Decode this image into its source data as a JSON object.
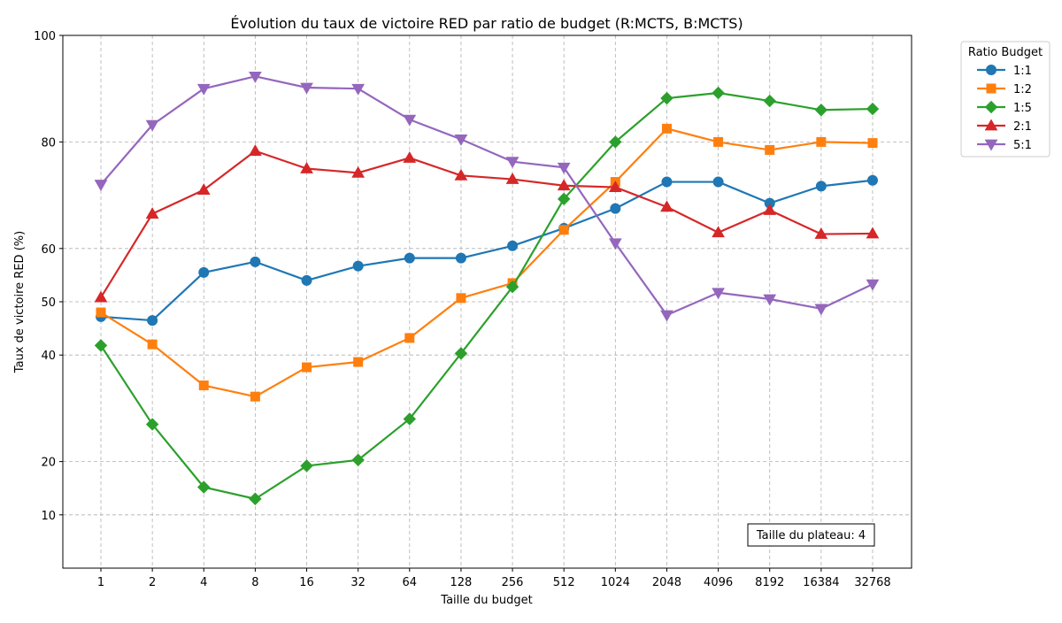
{
  "chart_data": {
    "type": "line",
    "title": "Évolution du taux de victoire RED par ratio de budget (R:MCTS, B:MCTS)",
    "xlabel": "Taille du budget",
    "ylabel": "Taux de victoire RED (%)",
    "categories": [
      "1",
      "2",
      "4",
      "8",
      "16",
      "32",
      "64",
      "128",
      "256",
      "512",
      "1024",
      "2048",
      "4096",
      "8192",
      "16384",
      "32768"
    ],
    "yticks": [
      "10",
      "20",
      "40",
      "50",
      "60",
      "80",
      "100"
    ],
    "ylim": [
      0,
      100
    ],
    "grid": true,
    "legend": {
      "title": "Ratio Budget",
      "placement": "outside-top-right"
    },
    "annotation": "Taille du plateau: 4",
    "series": [
      {
        "name": "1:1",
        "color": "#1f77b4",
        "marker": "circle",
        "values": [
          47.2,
          46.5,
          55.5,
          57.5,
          54,
          56.7,
          58.2,
          58.2,
          60.5,
          63.8,
          67.5,
          72.5,
          72.5,
          68.5,
          71.7,
          72.8
        ]
      },
      {
        "name": "1:2",
        "color": "#ff7f0e",
        "marker": "square",
        "values": [
          48,
          42,
          34.3,
          32.2,
          37.7,
          38.7,
          43.2,
          50.7,
          53.5,
          63.5,
          72.5,
          82.5,
          80,
          78.5,
          80,
          79.8
        ]
      },
      {
        "name": "1:5",
        "color": "#2ca02c",
        "marker": "diamond",
        "values": [
          41.8,
          27,
          15.2,
          13,
          19.2,
          20.3,
          28,
          40.3,
          52.8,
          69.3,
          80,
          88.2,
          89.2,
          87.7,
          86,
          86.2
        ]
      },
      {
        "name": "2:1",
        "color": "#d62728",
        "marker": "triangle-up",
        "values": [
          50.8,
          66.5,
          71,
          78.3,
          75,
          74.2,
          77,
          73.7,
          73,
          71.8,
          71.5,
          67.8,
          63,
          67.2,
          62.7,
          62.8
        ]
      },
      {
        "name": "5:1",
        "color": "#9467bd",
        "marker": "triangle-down",
        "values": [
          72,
          83.2,
          90,
          92.3,
          90.2,
          90,
          84.2,
          80.5,
          76.3,
          75.2,
          61,
          47.5,
          51.7,
          50.5,
          48.7,
          53.3
        ]
      }
    ]
  }
}
